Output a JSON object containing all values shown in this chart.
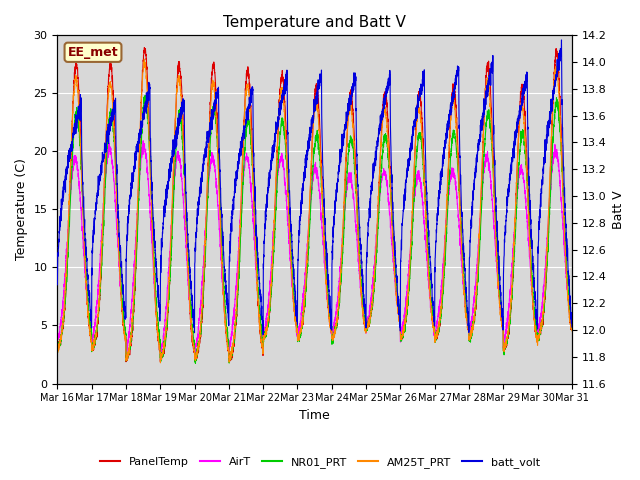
{
  "title": "Temperature and Batt V",
  "xlabel": "Time",
  "ylabel_left": "Temperature (C)",
  "ylabel_right": "Batt V",
  "ylim_left": [
    0,
    30
  ],
  "ylim_right": [
    11.6,
    14.2
  ],
  "n_days": 15,
  "station_label": "EE_met",
  "bg_color": "#d8d8d8",
  "series": [
    {
      "name": "PanelTemp",
      "color": "#dd0000",
      "lw": 0.8
    },
    {
      "name": "AirT",
      "color": "#ff00ff",
      "lw": 0.8
    },
    {
      "name": "NR01_PRT",
      "color": "#00cc00",
      "lw": 0.8
    },
    {
      "name": "AM25T_PRT",
      "color": "#ff8800",
      "lw": 0.8
    },
    {
      "name": "batt_volt",
      "color": "#0000dd",
      "lw": 0.8
    }
  ],
  "xtick_labels": [
    "Mar 16",
    "Mar 17",
    "Mar 18",
    "Mar 19",
    "Mar 20",
    "Mar 21",
    "Mar 22",
    "Mar 23",
    "Mar 24",
    "Mar 25",
    "Mar 26",
    "Mar 27",
    "Mar 28",
    "Mar 29",
    "Mar 30",
    "Mar 31"
  ],
  "xtick_positions": [
    0,
    1,
    2,
    3,
    4,
    5,
    6,
    7,
    8,
    9,
    10,
    11,
    12,
    13,
    14,
    15
  ],
  "yticks_left": [
    0,
    5,
    10,
    15,
    20,
    25,
    30
  ],
  "yticks_right": [
    11.6,
    11.8,
    12.0,
    12.2,
    12.4,
    12.6,
    12.8,
    13.0,
    13.2,
    13.4,
    13.6,
    13.8,
    14.0,
    14.2
  ],
  "figsize": [
    6.4,
    4.8
  ],
  "dpi": 100
}
